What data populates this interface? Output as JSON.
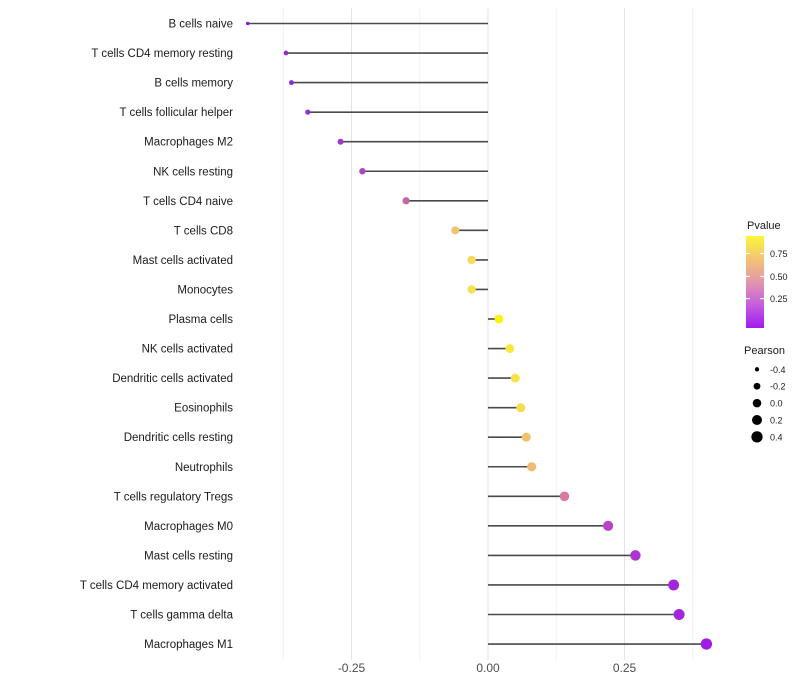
{
  "figure": {
    "background": "#ffffff"
  },
  "colors": {
    "stem": "#4a4a4a",
    "gridline_major": "#e4e4e4",
    "gridline_minor": "#f2f2f2",
    "category_text": "#1b1b1b",
    "axis_tick_text": "#4d4d4d",
    "legend_text": "#1b1b1b",
    "legend_size_dot": "#000000"
  },
  "chart_data": {
    "type": "scatter",
    "subtype": "lollipop",
    "title": "",
    "xlabel": "",
    "ylabel": "",
    "xlim": [
      -0.49,
      0.45
    ],
    "grid": "vertical-only",
    "x_ticks": [
      -0.25,
      0.0,
      0.25
    ],
    "x_tick_labels": [
      "-0.25",
      "0.00",
      "0.25"
    ],
    "x_minor_ticks": [
      -0.375,
      -0.125,
      0.125,
      0.375
    ],
    "points": [
      {
        "category": "B cells naive",
        "pearson": -0.44,
        "pvalue": 0.03,
        "color": "#7f22e0"
      },
      {
        "category": "T cells CD4 memory resting",
        "pearson": -0.37,
        "pvalue": 0.06,
        "color": "#8c2bd8"
      },
      {
        "category": "B cells memory",
        "pearson": -0.36,
        "pvalue": 0.07,
        "color": "#8d2cd7"
      },
      {
        "category": "T cells follicular helper",
        "pearson": -0.33,
        "pvalue": 0.09,
        "color": "#9434d0"
      },
      {
        "category": "Macrophages M2",
        "pearson": -0.27,
        "pvalue": 0.13,
        "color": "#9d3bc9"
      },
      {
        "category": "NK cells resting",
        "pearson": -0.23,
        "pvalue": 0.18,
        "color": "#a846c2"
      },
      {
        "category": "T cells CD4 naive",
        "pearson": -0.15,
        "pvalue": 0.33,
        "color": "#c366ac"
      },
      {
        "category": "T cells CD8",
        "pearson": -0.06,
        "pvalue": 0.62,
        "color": "#f1c46f"
      },
      {
        "category": "Mast cells activated",
        "pearson": -0.03,
        "pvalue": 0.75,
        "color": "#f6dc55"
      },
      {
        "category": "Monocytes",
        "pearson": -0.03,
        "pvalue": 0.78,
        "color": "#f7e04c"
      },
      {
        "category": "Plasma cells",
        "pearson": 0.02,
        "pvalue": 0.93,
        "color": "#fbf20a"
      },
      {
        "category": "NK cells activated",
        "pearson": 0.04,
        "pvalue": 0.82,
        "color": "#f9e93c"
      },
      {
        "category": "Dendritic cells activated",
        "pearson": 0.05,
        "pvalue": 0.79,
        "color": "#f8e247"
      },
      {
        "category": "Eosinophils",
        "pearson": 0.06,
        "pvalue": 0.76,
        "color": "#f7dc50"
      },
      {
        "category": "Dendritic cells resting",
        "pearson": 0.07,
        "pvalue": 0.64,
        "color": "#f2c16c"
      },
      {
        "category": "Neutrophils",
        "pearson": 0.08,
        "pvalue": 0.62,
        "color": "#f0bc73"
      },
      {
        "category": "T cells regulatory  Tregs",
        "pearson": 0.14,
        "pvalue": 0.42,
        "color": "#d8799f"
      },
      {
        "category": "Macrophages M0",
        "pearson": 0.22,
        "pvalue": 0.21,
        "color": "#b843c6"
      },
      {
        "category": "Mast cells resting",
        "pearson": 0.27,
        "pvalue": 0.14,
        "color": "#ac35cf"
      },
      {
        "category": "T cells CD4 memory activated",
        "pearson": 0.34,
        "pvalue": 0.06,
        "color": "#a426db"
      },
      {
        "category": "T cells gamma delta",
        "pearson": 0.35,
        "pvalue": 0.06,
        "color": "#a326dc"
      },
      {
        "category": "Macrophages M1",
        "pearson": 0.4,
        "pvalue": 0.03,
        "color": "#a01be3"
      }
    ],
    "legend_pvalue": {
      "title": "Pvalue",
      "tick_labels": [
        "0.75",
        "0.50",
        "0.25"
      ],
      "tick_values": [
        0.75,
        0.5,
        0.25
      ],
      "range": [
        0,
        1
      ],
      "gradient_top_to_bottom": [
        "#fcf63a",
        "#f3c472",
        "#e396ae",
        "#c45dde",
        "#a21aef"
      ]
    },
    "legend_pearson": {
      "title": "Pearson",
      "entries": [
        {
          "label": "-0.4",
          "value": -0.4
        },
        {
          "label": "-0.2",
          "value": -0.2
        },
        {
          "label": "0.0",
          "value": 0.0
        },
        {
          "label": "0.2",
          "value": 0.2
        },
        {
          "label": "0.4",
          "value": 0.4
        }
      ]
    }
  }
}
